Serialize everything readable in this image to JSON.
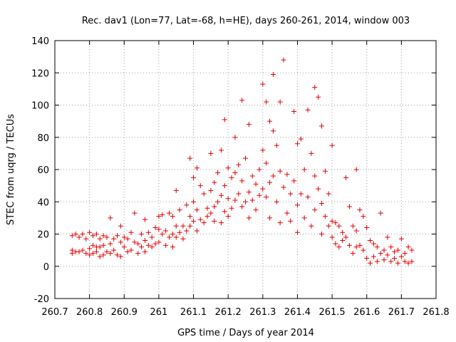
{
  "chart_data": {
    "type": "scatter",
    "title": "Rec. dav1 (Lon=77, Lat=-68, h=HE), days 260-261, 2014, window 003",
    "xlabel": "GPS time / Days of year 2014",
    "ylabel": "STEC from uqrg / TECUs",
    "xlim": [
      260.7,
      261.8
    ],
    "ylim": [
      -20,
      140
    ],
    "xticks": [
      260.7,
      260.8,
      260.9,
      261,
      261.1,
      261.2,
      261.3,
      261.4,
      261.5,
      261.6,
      261.7,
      261.8
    ],
    "xtick_labels": [
      "260.7",
      "260.8",
      "260.9",
      "261",
      "261.1",
      "261.2",
      "261.3",
      "261.4",
      "261.5",
      "261.6",
      "261.7",
      "261.8"
    ],
    "yticks": [
      -20,
      0,
      20,
      40,
      60,
      80,
      100,
      120,
      140
    ],
    "ytick_labels": [
      "-20",
      "0",
      "20",
      "40",
      "60",
      "80",
      "100",
      "120",
      "140"
    ],
    "grid": true,
    "marker": "+",
    "color": "#e00000",
    "series": [
      {
        "points": [
          [
            260.75,
            19
          ],
          [
            260.75,
            10
          ],
          [
            260.75,
            8
          ],
          [
            260.76,
            20
          ],
          [
            260.76,
            9
          ],
          [
            260.77,
            18
          ],
          [
            260.77,
            9
          ],
          [
            260.78,
            20
          ],
          [
            260.78,
            10
          ],
          [
            260.79,
            17
          ],
          [
            260.79,
            8
          ],
          [
            260.8,
            21
          ],
          [
            260.8,
            11
          ],
          [
            260.8,
            7
          ],
          [
            260.81,
            19
          ],
          [
            260.81,
            13
          ],
          [
            260.81,
            8
          ],
          [
            260.82,
            20
          ],
          [
            260.82,
            12
          ],
          [
            260.82,
            9
          ],
          [
            260.83,
            17
          ],
          [
            260.83,
            12
          ],
          [
            260.83,
            6
          ],
          [
            260.84,
            19
          ],
          [
            260.84,
            13
          ],
          [
            260.84,
            7
          ],
          [
            260.85,
            18
          ],
          [
            260.85,
            9
          ],
          [
            260.86,
            30
          ],
          [
            260.86,
            14
          ],
          [
            260.86,
            8
          ],
          [
            260.87,
            17
          ],
          [
            260.87,
            10
          ],
          [
            260.88,
            19
          ],
          [
            260.88,
            7
          ],
          [
            260.89,
            25
          ],
          [
            260.89,
            15
          ],
          [
            260.89,
            6
          ],
          [
            260.9,
            18
          ],
          [
            260.9,
            12
          ],
          [
            260.91,
            17
          ],
          [
            260.91,
            9
          ],
          [
            260.92,
            21
          ],
          [
            260.92,
            10
          ],
          [
            260.93,
            33
          ],
          [
            260.93,
            15
          ],
          [
            260.94,
            14
          ],
          [
            260.94,
            8
          ],
          [
            260.95,
            20
          ],
          [
            260.95,
            12
          ],
          [
            260.96,
            29
          ],
          [
            260.96,
            16
          ],
          [
            260.96,
            9
          ],
          [
            260.97,
            21
          ],
          [
            260.97,
            13
          ],
          [
            260.98,
            18
          ],
          [
            260.98,
            12
          ],
          [
            260.99,
            24
          ],
          [
            260.99,
            14
          ],
          [
            261.0,
            31
          ],
          [
            261.0,
            23
          ],
          [
            261.0,
            15
          ],
          [
            261.01,
            32
          ],
          [
            261.01,
            20
          ],
          [
            261.02,
            22
          ],
          [
            261.02,
            13
          ],
          [
            261.03,
            33
          ],
          [
            261.03,
            18
          ],
          [
            261.04,
            31
          ],
          [
            261.04,
            20
          ],
          [
            261.04,
            12
          ],
          [
            261.05,
            47
          ],
          [
            261.05,
            25
          ],
          [
            261.05,
            18
          ],
          [
            261.06,
            35
          ],
          [
            261.06,
            21
          ],
          [
            261.07,
            25
          ],
          [
            261.07,
            17
          ],
          [
            261.08,
            38
          ],
          [
            261.08,
            22
          ],
          [
            261.09,
            67
          ],
          [
            261.09,
            31
          ],
          [
            261.09,
            25
          ],
          [
            261.1,
            55
          ],
          [
            261.1,
            40
          ],
          [
            261.1,
            28
          ],
          [
            261.11,
            61
          ],
          [
            261.11,
            35
          ],
          [
            261.11,
            22
          ],
          [
            261.12,
            50
          ],
          [
            261.12,
            29
          ],
          [
            261.13,
            45
          ],
          [
            261.13,
            27
          ],
          [
            261.14,
            36
          ],
          [
            261.14,
            31
          ],
          [
            261.15,
            70
          ],
          [
            261.15,
            47
          ],
          [
            261.15,
            33
          ],
          [
            261.16,
            52
          ],
          [
            261.16,
            37
          ],
          [
            261.16,
            28
          ],
          [
            261.17,
            58
          ],
          [
            261.17,
            40
          ],
          [
            261.18,
            72
          ],
          [
            261.18,
            44
          ],
          [
            261.18,
            27
          ],
          [
            261.19,
            91
          ],
          [
            261.19,
            50
          ],
          [
            261.19,
            34
          ],
          [
            261.2,
            61
          ],
          [
            261.2,
            42
          ],
          [
            261.2,
            31
          ],
          [
            261.21,
            55
          ],
          [
            261.21,
            36
          ],
          [
            261.22,
            80
          ],
          [
            261.22,
            58
          ],
          [
            261.22,
            41
          ],
          [
            261.23,
            63
          ],
          [
            261.23,
            45
          ],
          [
            261.24,
            103
          ],
          [
            261.24,
            53
          ],
          [
            261.24,
            37
          ],
          [
            261.25,
            67
          ],
          [
            261.25,
            40
          ],
          [
            261.26,
            88
          ],
          [
            261.26,
            46
          ],
          [
            261.26,
            30
          ],
          [
            261.27,
            56
          ],
          [
            261.27,
            41
          ],
          [
            261.28,
            51
          ],
          [
            261.28,
            35
          ],
          [
            261.29,
            60
          ],
          [
            261.29,
            44
          ],
          [
            261.3,
            113
          ],
          [
            261.3,
            72
          ],
          [
            261.3,
            48
          ],
          [
            261.31,
            102
          ],
          [
            261.31,
            64
          ],
          [
            261.31,
            43
          ],
          [
            261.32,
            90
          ],
          [
            261.32,
            52
          ],
          [
            261.32,
            30
          ],
          [
            261.33,
            119
          ],
          [
            261.33,
            84
          ],
          [
            261.33,
            56
          ],
          [
            261.34,
            75
          ],
          [
            261.34,
            40
          ],
          [
            261.35,
            102
          ],
          [
            261.35,
            59
          ],
          [
            261.35,
            27
          ],
          [
            261.36,
            128
          ],
          [
            261.36,
            49
          ],
          [
            261.37,
            57
          ],
          [
            261.37,
            33
          ],
          [
            261.38,
            45
          ],
          [
            261.38,
            28
          ],
          [
            261.39,
            96
          ],
          [
            261.39,
            53
          ],
          [
            261.4,
            76
          ],
          [
            261.4,
            38
          ],
          [
            261.4,
            21
          ],
          [
            261.41,
            79
          ],
          [
            261.41,
            45
          ],
          [
            261.42,
            60
          ],
          [
            261.42,
            30
          ],
          [
            261.43,
            97
          ],
          [
            261.43,
            43
          ],
          [
            261.44,
            70
          ],
          [
            261.44,
            25
          ],
          [
            261.45,
            111
          ],
          [
            261.45,
            56
          ],
          [
            261.45,
            35
          ],
          [
            261.46,
            105
          ],
          [
            261.46,
            48
          ],
          [
            261.47,
            87
          ],
          [
            261.47,
            39
          ],
          [
            261.47,
            20
          ],
          [
            261.48,
            59
          ],
          [
            261.48,
            31
          ],
          [
            261.49,
            45
          ],
          [
            261.49,
            25
          ],
          [
            261.5,
            75
          ],
          [
            261.5,
            28
          ],
          [
            261.5,
            18
          ],
          [
            261.51,
            27
          ],
          [
            261.51,
            14
          ],
          [
            261.52,
            25
          ],
          [
            261.52,
            12
          ],
          [
            261.53,
            21
          ],
          [
            261.53,
            16
          ],
          [
            261.54,
            55
          ],
          [
            261.54,
            18
          ],
          [
            261.55,
            37
          ],
          [
            261.55,
            13
          ],
          [
            261.56,
            25
          ],
          [
            261.56,
            8
          ],
          [
            261.57,
            60
          ],
          [
            261.57,
            22
          ],
          [
            261.57,
            12
          ],
          [
            261.58,
            35
          ],
          [
            261.58,
            13
          ],
          [
            261.59,
            31
          ],
          [
            261.59,
            10
          ],
          [
            261.6,
            24
          ],
          [
            261.6,
            5
          ],
          [
            261.61,
            16
          ],
          [
            261.61,
            2
          ],
          [
            261.62,
            14
          ],
          [
            261.62,
            6
          ],
          [
            261.63,
            12
          ],
          [
            261.63,
            3
          ],
          [
            261.64,
            33
          ],
          [
            261.64,
            8
          ],
          [
            261.65,
            10
          ],
          [
            261.65,
            4
          ],
          [
            261.66,
            18
          ],
          [
            261.66,
            7
          ],
          [
            261.67,
            12
          ],
          [
            261.67,
            3
          ],
          [
            261.68,
            9
          ],
          [
            261.68,
            5
          ],
          [
            261.69,
            10
          ],
          [
            261.69,
            2
          ],
          [
            261.7,
            17
          ],
          [
            261.7,
            6
          ],
          [
            261.71,
            8
          ],
          [
            261.71,
            3
          ],
          [
            261.72,
            12
          ],
          [
            261.72,
            2
          ],
          [
            261.73,
            10
          ],
          [
            261.73,
            3
          ]
        ]
      }
    ]
  }
}
